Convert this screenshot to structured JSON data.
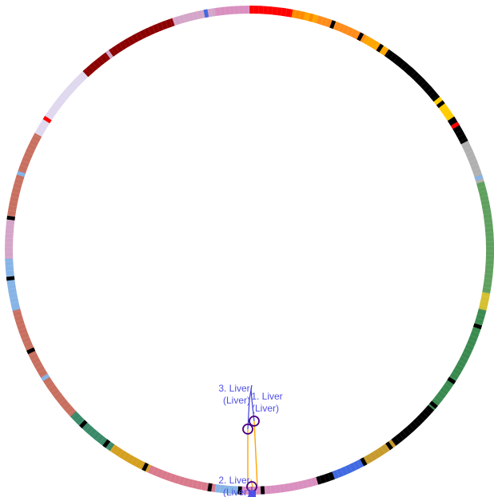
{
  "ring": {
    "segments": [
      {
        "value": 5.0,
        "color": "#ff0000"
      },
      {
        "value": 1.5,
        "color": "#ff8c00"
      },
      {
        "value": 1.5,
        "color": "#ffa500"
      },
      {
        "value": 6.0,
        "color": "#ff8c1a"
      },
      {
        "value": 3.0,
        "color": "#ffa500"
      },
      {
        "value": 8.0,
        "color": "#000000"
      },
      {
        "value": 3.0,
        "color": "#ffcc00"
      },
      {
        "value": 3.0,
        "color": "#000000"
      },
      {
        "value": 5.0,
        "color": "#b0b0b0"
      },
      {
        "value": 13.0,
        "color": "#5fa05f"
      },
      {
        "value": 2.0,
        "color": "#d4c032"
      },
      {
        "value": 13.0,
        "color": "#3a8a50"
      },
      {
        "value": 6.0,
        "color": "#000000"
      },
      {
        "value": 4.0,
        "color": "#c79a2e"
      },
      {
        "value": 4.0,
        "color": "#4169e1"
      },
      {
        "value": 2.0,
        "color": "#000000"
      },
      {
        "value": 9.0,
        "color": "#d98fbf"
      },
      {
        "value": 3.0,
        "color": "#87b4e6"
      },
      {
        "value": 8.0,
        "color": "#d97a8c"
      },
      {
        "value": 5.0,
        "color": "#d4a020"
      },
      {
        "value": 6.0,
        "color": "#3a8a6a"
      },
      {
        "value": 14.0,
        "color": "#c87060"
      },
      {
        "value": 6.0,
        "color": "#87b4e6"
      },
      {
        "value": 5.0,
        "color": "#d4a5c8"
      },
      {
        "value": 10.0,
        "color": "#c87060"
      },
      {
        "value": 9.0,
        "color": "#e0d8ee"
      },
      {
        "value": 12.0,
        "color": "#8b0000"
      },
      {
        "value": 5.0,
        "color": "#d4a5c8"
      },
      {
        "value": 4.0,
        "color": "#d98fbf"
      }
    ],
    "accents": [
      {
        "at": 0.04,
        "color": "#ff8c00"
      },
      {
        "at": 0.055,
        "color": "#000000"
      },
      {
        "at": 0.075,
        "color": "#000000"
      },
      {
        "at": 0.09,
        "color": "#000000"
      },
      {
        "at": 0.105,
        "color": "#000000"
      },
      {
        "at": 0.115,
        "color": "#000000"
      },
      {
        "at": 0.145,
        "color": "#000000"
      },
      {
        "at": 0.158,
        "color": "#000000"
      },
      {
        "at": 0.162,
        "color": "#ff0000"
      },
      {
        "at": 0.2,
        "color": "#87b4e6"
      },
      {
        "at": 0.3,
        "color": "#000000"
      },
      {
        "at": 0.34,
        "color": "#000000"
      },
      {
        "at": 0.36,
        "color": "#000000"
      },
      {
        "at": 0.4,
        "color": "#000000"
      },
      {
        "at": 0.42,
        "color": "#000000"
      },
      {
        "at": 0.49,
        "color": "#000000"
      },
      {
        "at": 0.505,
        "color": "#000000"
      },
      {
        "at": 0.525,
        "color": "#000000"
      },
      {
        "at": 0.57,
        "color": "#000000"
      },
      {
        "at": 0.6,
        "color": "#000000"
      },
      {
        "at": 0.62,
        "color": "#000000"
      },
      {
        "at": 0.66,
        "color": "#87b4e6"
      },
      {
        "at": 0.68,
        "color": "#000000"
      },
      {
        "at": 0.71,
        "color": "#87b4e6"
      },
      {
        "at": 0.73,
        "color": "#000000"
      },
      {
        "at": 0.77,
        "color": "#000000"
      },
      {
        "at": 0.8,
        "color": "#87b4e6"
      },
      {
        "at": 0.84,
        "color": "#ff0000"
      },
      {
        "at": 0.9,
        "color": "#d4a5c8"
      },
      {
        "at": 0.97,
        "color": "#4169e1"
      }
    ]
  },
  "markers": [
    {
      "text_line1": "1. Liver",
      "text_line2": "(Liver)",
      "color": "#5050e6",
      "ring_color": "#4b0082",
      "stem_color": "#ffa500"
    },
    {
      "text_line1": "2. Liver",
      "text_line2": "(Liver)",
      "color": "#5050e6",
      "ring_color": "#4b0082",
      "stem_color": "#ffa500"
    },
    {
      "text_line1": "3. Liver",
      "text_line2": "(Liver)",
      "color": "#5050e6",
      "ring_color": "#4b0082",
      "stem_color": "#ffa500"
    }
  ]
}
